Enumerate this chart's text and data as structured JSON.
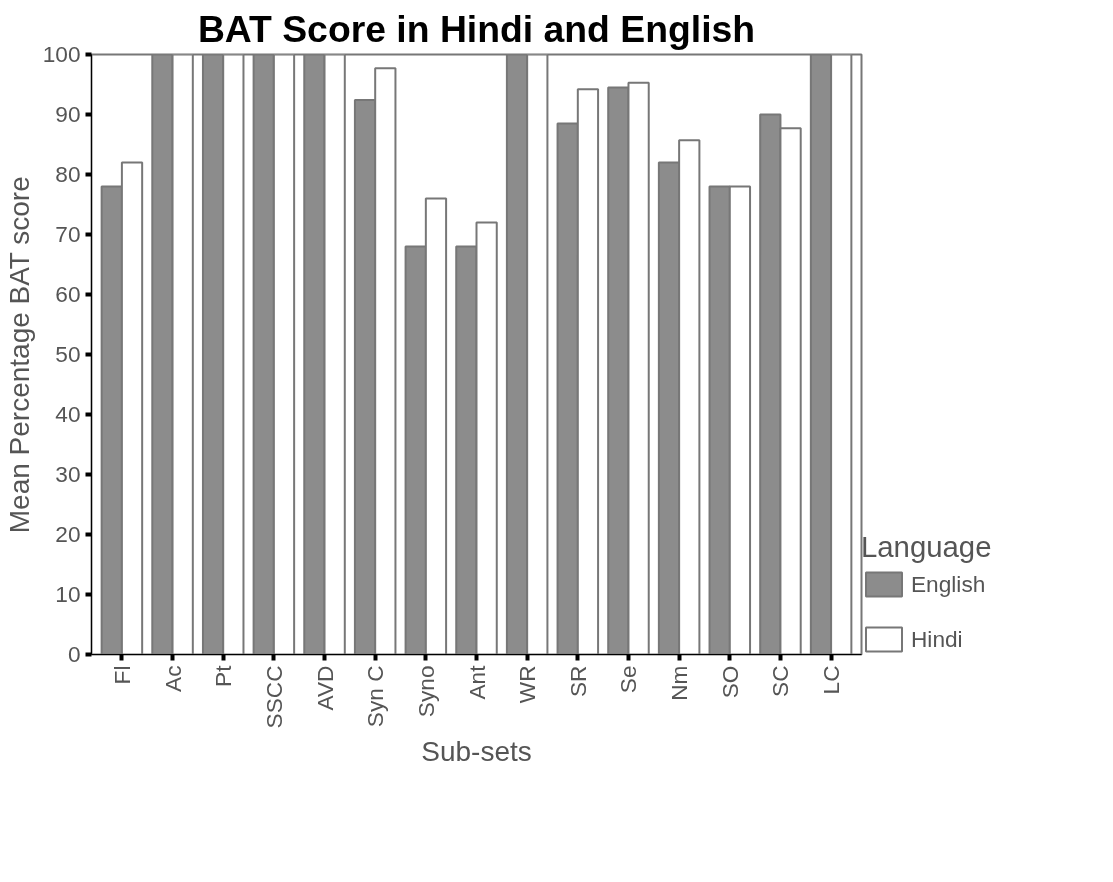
{
  "chart_data": {
    "type": "bar",
    "title": "BAT Score in Hindi and English",
    "xlabel": "Sub-sets",
    "ylabel": "Mean Percentage BAT score",
    "legend_title": "Language",
    "categories": [
      "Fl",
      "Ac",
      "Pt",
      "SSCC",
      "AVD",
      "Syn C",
      "Syno",
      "Ant",
      "WR",
      "SR",
      "Se",
      "Nm",
      "SO",
      "SC",
      "LC"
    ],
    "series": [
      {
        "name": "English",
        "color": "#8c8c8c",
        "values": [
          78,
          100,
          100,
          100,
          100,
          92.4,
          68,
          68,
          100,
          88.5,
          94.5,
          82,
          78,
          90,
          100
        ]
      },
      {
        "name": "Hindi",
        "color": "#ffffff",
        "values": [
          82,
          100,
          100,
          100,
          100,
          97.7,
          76,
          72,
          100,
          94.2,
          95.3,
          85.7,
          78,
          87.7,
          100
        ]
      }
    ],
    "ylim": [
      0,
      100
    ],
    "yticks": [
      0,
      10,
      20,
      30,
      40,
      50,
      60,
      70,
      80,
      90,
      100
    ],
    "grid": false,
    "legend": "right"
  }
}
